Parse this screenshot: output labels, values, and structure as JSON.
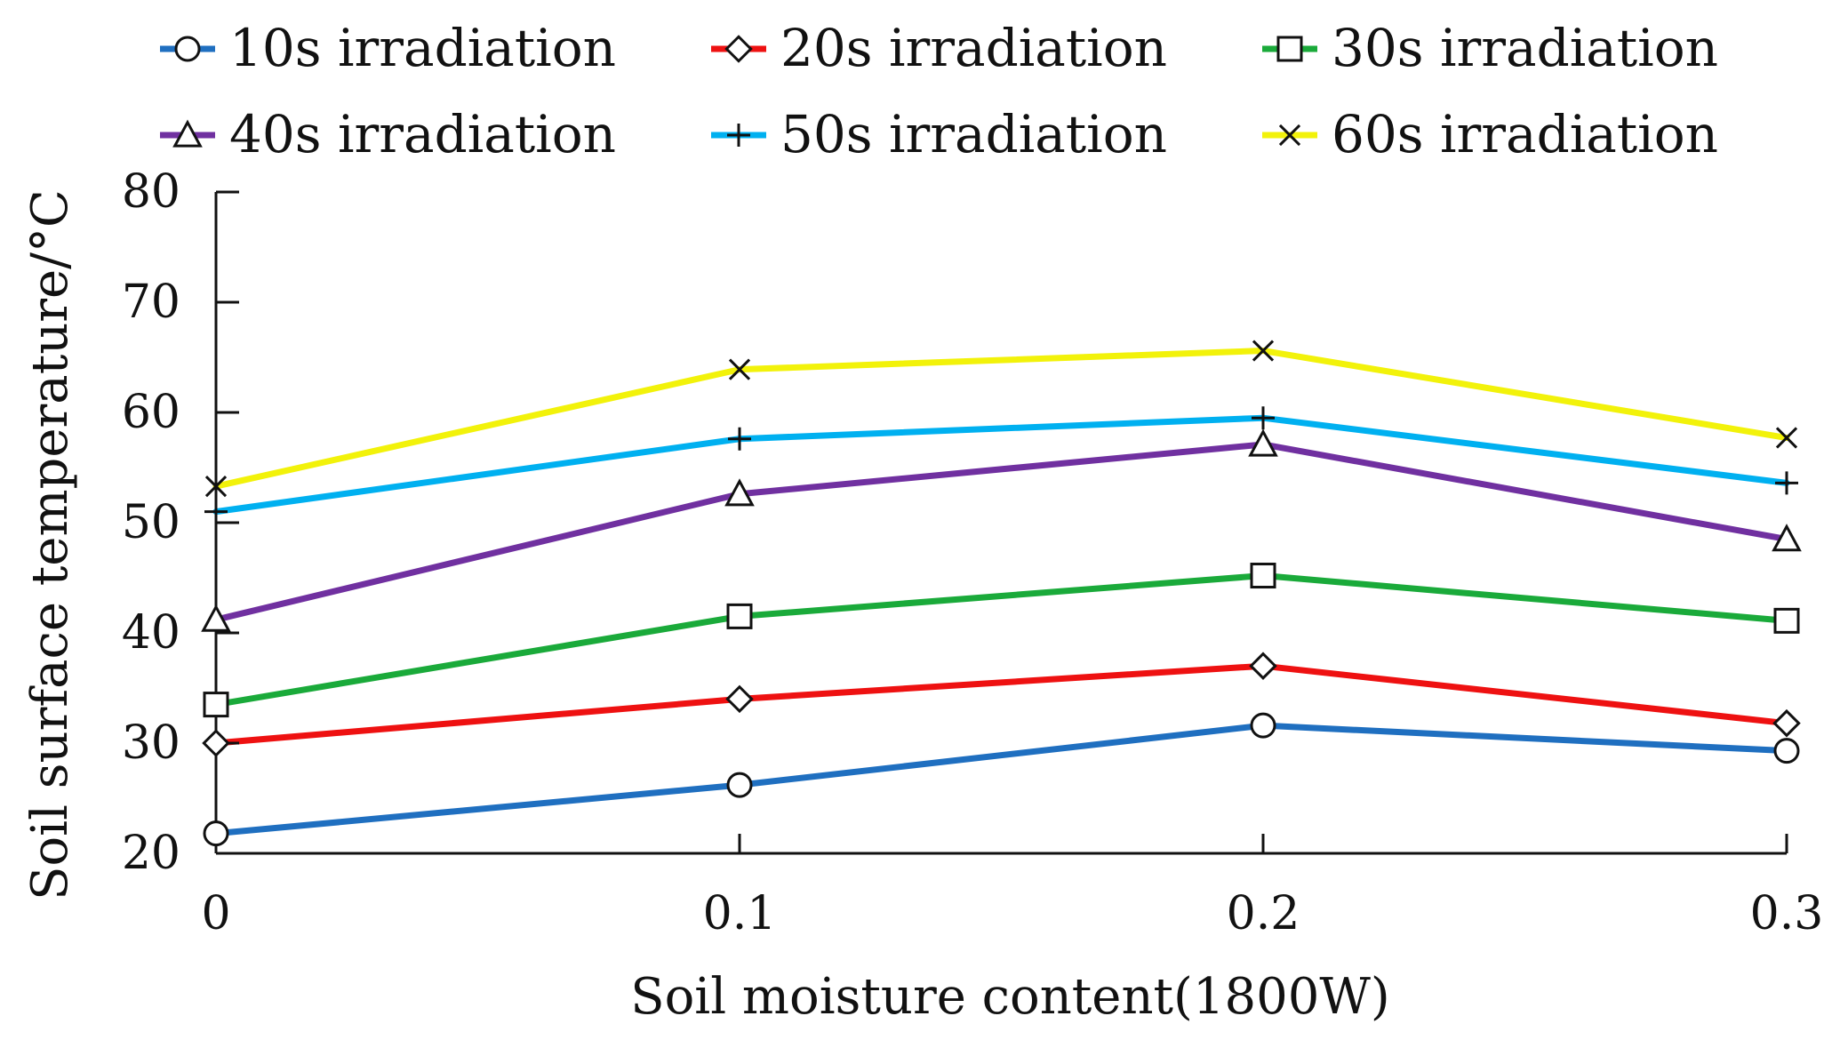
{
  "chart_data": {
    "type": "line",
    "title": "",
    "xlabel": "Soil moisture content(1800W)",
    "ylabel": "Soil surface temperature/°C",
    "x": [
      0,
      0.1,
      0.2,
      0.3
    ],
    "x_tick_labels": [
      "0",
      "0.1",
      "0.2",
      "0.3"
    ],
    "y_ticks": [
      20,
      30,
      40,
      50,
      60,
      70,
      80
    ],
    "y_tick_labels": [
      "20",
      "30",
      "40",
      "50",
      "60",
      "70",
      "80"
    ],
    "xlim": [
      0,
      0.3
    ],
    "ylim": [
      20,
      80
    ],
    "grid": false,
    "legend_position": "top",
    "series": [
      {
        "name": "10s irradiation",
        "color": "#1f6fc0",
        "marker": "circle",
        "values": [
          21.8,
          26.2,
          31.6,
          29.3
        ]
      },
      {
        "name": "20s irradiation",
        "color": "#ee1111",
        "marker": "diamond",
        "values": [
          30.0,
          34.0,
          37.0,
          31.8
        ]
      },
      {
        "name": "30s irradiation",
        "color": "#1aaa3a",
        "marker": "square",
        "values": [
          33.5,
          41.5,
          45.2,
          41.1
        ]
      },
      {
        "name": "40s irradiation",
        "color": "#7030a0",
        "marker": "triangle",
        "values": [
          41.2,
          52.6,
          57.1,
          48.5
        ]
      },
      {
        "name": "50s irradiation",
        "color": "#00b0f0",
        "marker": "plus",
        "values": [
          51.0,
          57.6,
          59.5,
          53.6
        ]
      },
      {
        "name": "60s irradiation",
        "color": "#f2f20a",
        "marker": "x",
        "values": [
          53.3,
          63.9,
          65.6,
          57.7
        ]
      }
    ]
  }
}
